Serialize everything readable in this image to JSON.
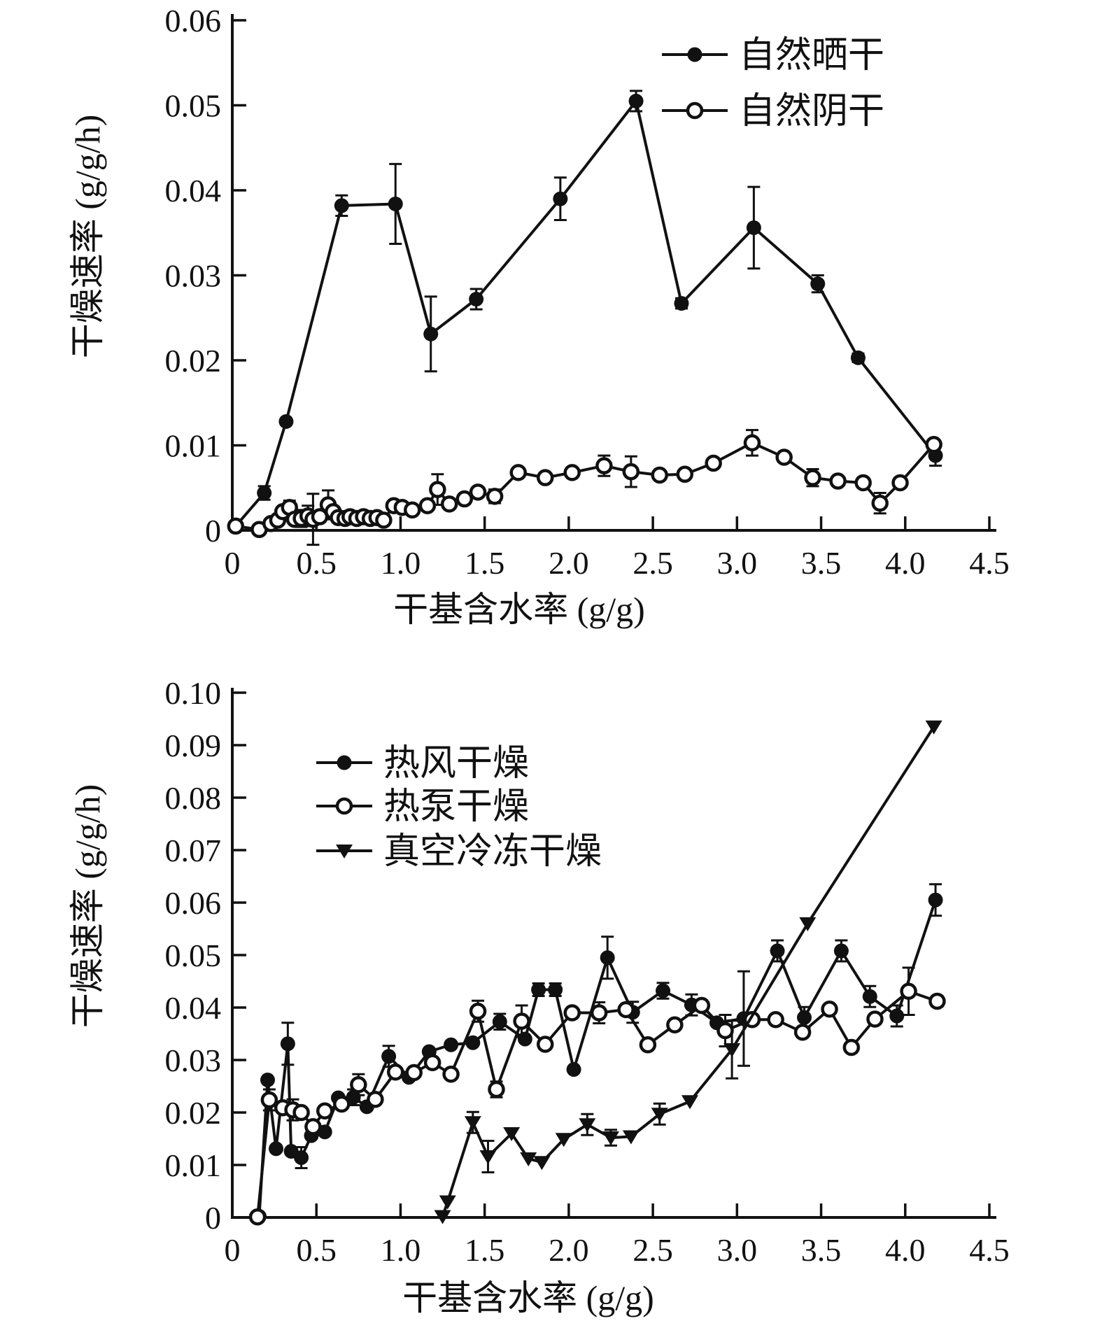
{
  "ink_color": "#111111",
  "charts": [
    {
      "name": "top-drying-rate-chart",
      "ylabel": "干燥速率 (g/g/h)",
      "xlabel": "干基含水率 (g/g)",
      "xlim": [
        0,
        4.5
      ],
      "ylim": [
        0,
        0.06
      ],
      "x_ticks": [
        0,
        0.5,
        1.0,
        1.5,
        2.0,
        2.5,
        3.0,
        3.5,
        4.0,
        4.5
      ],
      "x_tick_labels": [
        "0",
        "0.5",
        "1.0",
        "1.5",
        "2.0",
        "2.5",
        "3.0",
        "3.5",
        "4.0",
        "4.5"
      ],
      "y_ticks": [
        0,
        0.01,
        0.02,
        0.03,
        0.04,
        0.05,
        0.06
      ],
      "y_tick_labels": [
        "0",
        "0.01",
        "0.02",
        "0.03",
        "0.04",
        "0.05",
        "0.06"
      ],
      "legend": [
        {
          "label": "自然晒干",
          "marker": "filled-circle"
        },
        {
          "label": "自然阴干",
          "marker": "open-circle"
        }
      ],
      "chart_data": {
        "type": "line",
        "grid": false,
        "legend_position": "upper-right-inside",
        "series": [
          {
            "name": "自然晒干",
            "marker": "filled-circle",
            "points": [
              [
                0.02,
                0.0005,
                0
              ],
              [
                0.19,
                0.0044,
                0.0008
              ],
              [
                0.32,
                0.0128,
                0
              ],
              [
                0.65,
                0.0382,
                0.0012
              ],
              [
                0.97,
                0.0384,
                0.0047
              ],
              [
                1.18,
                0.0231,
                0.0044
              ],
              [
                1.45,
                0.0272,
                0.0012
              ],
              [
                1.95,
                0.039,
                0.0025
              ],
              [
                2.4,
                0.0505,
                0.0012
              ],
              [
                2.67,
                0.0267,
                0.0006
              ],
              [
                3.1,
                0.0356,
                0.0048
              ],
              [
                3.48,
                0.029,
                0.001
              ],
              [
                3.72,
                0.0203,
                0.0005
              ],
              [
                4.18,
                0.0088,
                0.0012
              ]
            ]
          },
          {
            "name": "自然阴干",
            "marker": "open-circle",
            "points": [
              [
                0.02,
                0.0005,
                0
              ],
              [
                0.16,
                0.0001,
                0
              ],
              [
                0.23,
                0.0008,
                0
              ],
              [
                0.27,
                0.0012,
                0
              ],
              [
                0.3,
                0.0022,
                0.0005
              ],
              [
                0.34,
                0.0027,
                0.0008
              ],
              [
                0.37,
                0.0013,
                0
              ],
              [
                0.41,
                0.0014,
                0.001
              ],
              [
                0.45,
                0.0017,
                0.0012
              ],
              [
                0.48,
                0.0013,
                0.003
              ],
              [
                0.52,
                0.0016,
                0
              ],
              [
                0.57,
                0.003,
                0.0017
              ],
              [
                0.6,
                0.0022,
                0
              ],
              [
                0.63,
                0.0015,
                0
              ],
              [
                0.67,
                0.0014,
                0
              ],
              [
                0.7,
                0.0016,
                0
              ],
              [
                0.74,
                0.0014,
                0
              ],
              [
                0.78,
                0.0016,
                0
              ],
              [
                0.82,
                0.0014,
                0
              ],
              [
                0.86,
                0.0015,
                0
              ],
              [
                0.9,
                0.0012,
                0
              ],
              [
                0.96,
                0.0029,
                0
              ],
              [
                1.01,
                0.0027,
                0
              ],
              [
                1.07,
                0.0024,
                0
              ],
              [
                1.16,
                0.0029,
                0
              ],
              [
                1.22,
                0.0048,
                0.0018
              ],
              [
                1.29,
                0.0031,
                0
              ],
              [
                1.38,
                0.0037,
                0
              ],
              [
                1.46,
                0.0045,
                0.0005
              ],
              [
                1.56,
                0.004,
                0.0008
              ],
              [
                1.7,
                0.0068,
                0
              ],
              [
                1.86,
                0.0062,
                0
              ],
              [
                2.02,
                0.0068,
                0
              ],
              [
                2.21,
                0.0076,
                0.0012
              ],
              [
                2.37,
                0.0069,
                0.0018
              ],
              [
                2.54,
                0.0065,
                0
              ],
              [
                2.69,
                0.0066,
                0
              ],
              [
                2.86,
                0.0079,
                0
              ],
              [
                3.09,
                0.0103,
                0.0015
              ],
              [
                3.28,
                0.0086,
                0
              ],
              [
                3.45,
                0.0062,
                0.001
              ],
              [
                3.6,
                0.0058,
                0
              ],
              [
                3.75,
                0.0056,
                0
              ],
              [
                3.85,
                0.0032,
                0.0012
              ],
              [
                3.97,
                0.0056,
                0
              ],
              [
                4.17,
                0.0101,
                0
              ]
            ]
          }
        ]
      }
    },
    {
      "name": "bottom-drying-rate-chart",
      "ylabel": "干燥速率 (g/g/h)",
      "xlabel": "干基含水率 (g/g)",
      "xlim": [
        0,
        4.5
      ],
      "ylim": [
        0,
        0.1
      ],
      "x_ticks": [
        0,
        0.5,
        1.0,
        1.5,
        2.0,
        2.5,
        3.0,
        3.5,
        4.0,
        4.5
      ],
      "x_tick_labels": [
        "0",
        "0.5",
        "1.0",
        "1.5",
        "2.0",
        "2.5",
        "3.0",
        "3.5",
        "4.0",
        "4.5"
      ],
      "y_ticks": [
        0,
        0.01,
        0.02,
        0.03,
        0.04,
        0.05,
        0.06,
        0.07,
        0.08,
        0.09,
        0.1
      ],
      "y_tick_labels": [
        "0",
        "0.01",
        "0.02",
        "0.03",
        "0.04",
        "0.05",
        "0.06",
        "0.07",
        "0.08",
        "0.09",
        "0.10"
      ],
      "legend": [
        {
          "label": "热风干燥",
          "marker": "filled-circle"
        },
        {
          "label": "热泵干燥",
          "marker": "open-circle"
        },
        {
          "label": "真空冷冻干燥",
          "marker": "filled-triangle-down"
        }
      ],
      "chart_data": {
        "type": "line",
        "grid": false,
        "legend_position": "upper-left-inside",
        "series": [
          {
            "name": "热风干燥",
            "marker": "filled-circle",
            "points": [
              [
                0.16,
                0.0002,
                0
              ],
              [
                0.21,
                0.0262,
                0
              ],
              [
                0.26,
                0.0131,
                0
              ],
              [
                0.33,
                0.0331,
                0.004
              ],
              [
                0.35,
                0.0126,
                0
              ],
              [
                0.41,
                0.0114,
                0.002
              ],
              [
                0.47,
                0.0156,
                0
              ],
              [
                0.55,
                0.0163,
                0
              ],
              [
                0.63,
                0.0228,
                0
              ],
              [
                0.72,
                0.0229,
                0.0015
              ],
              [
                0.8,
                0.0211,
                0
              ],
              [
                0.93,
                0.0307,
                0.002
              ],
              [
                1.05,
                0.0267,
                0
              ],
              [
                1.17,
                0.0316,
                0
              ],
              [
                1.3,
                0.0329,
                0
              ],
              [
                1.43,
                0.0333,
                0
              ],
              [
                1.59,
                0.0373,
                0.0015
              ],
              [
                1.74,
                0.034,
                0
              ],
              [
                1.82,
                0.0434,
                0.0012
              ],
              [
                1.92,
                0.0434,
                0.0012
              ],
              [
                2.03,
                0.0282,
                0
              ],
              [
                2.23,
                0.0495,
                0.004
              ],
              [
                2.38,
                0.0391,
                0.002
              ],
              [
                2.56,
                0.0432,
                0.0015
              ],
              [
                2.73,
                0.0405,
                0.002
              ],
              [
                2.88,
                0.0371,
                0
              ],
              [
                3.04,
                0.0379,
                0.009
              ],
              [
                3.24,
                0.0508,
                0.002
              ],
              [
                3.4,
                0.0381,
                0.002
              ],
              [
                3.62,
                0.0508,
                0.002
              ],
              [
                3.79,
                0.0421,
                0.002
              ],
              [
                3.95,
                0.0384,
                0.002
              ],
              [
                4.18,
                0.0605,
                0.003
              ]
            ]
          },
          {
            "name": "热泵干燥",
            "marker": "open-circle",
            "points": [
              [
                0.15,
                0.0001,
                0
              ],
              [
                0.22,
                0.0224,
                0.002
              ],
              [
                0.3,
                0.0209,
                0
              ],
              [
                0.36,
                0.0205,
                0.002
              ],
              [
                0.41,
                0.02,
                0
              ],
              [
                0.48,
                0.0173,
                0
              ],
              [
                0.55,
                0.0203,
                0
              ],
              [
                0.65,
                0.0216,
                0
              ],
              [
                0.75,
                0.0253,
                0.002
              ],
              [
                0.85,
                0.0225,
                0
              ],
              [
                0.97,
                0.0277,
                0
              ],
              [
                1.08,
                0.0276,
                0
              ],
              [
                1.19,
                0.0295,
                0
              ],
              [
                1.3,
                0.0273,
                0
              ],
              [
                1.46,
                0.0393,
                0.002
              ],
              [
                1.57,
                0.0244,
                0.0015
              ],
              [
                1.72,
                0.0374,
                0.003
              ],
              [
                1.86,
                0.033,
                0
              ],
              [
                2.02,
                0.039,
                0
              ],
              [
                2.18,
                0.039,
                0.002
              ],
              [
                2.34,
                0.0396,
                0
              ],
              [
                2.47,
                0.0329,
                0
              ],
              [
                2.63,
                0.0367,
                0
              ],
              [
                2.79,
                0.0404,
                0
              ],
              [
                2.93,
                0.0356,
                0.003
              ],
              [
                3.09,
                0.0377,
                0
              ],
              [
                3.23,
                0.0377,
                0
              ],
              [
                3.39,
                0.0353,
                0
              ],
              [
                3.55,
                0.0397,
                0
              ],
              [
                3.68,
                0.0324,
                0
              ],
              [
                3.82,
                0.0378,
                0
              ],
              [
                4.02,
                0.0431,
                0.0045
              ],
              [
                4.19,
                0.0412,
                0.001
              ]
            ]
          },
          {
            "name": "真空冷冻干燥",
            "marker": "filled-triangle-down",
            "points": [
              [
                1.25,
                0.0002,
                0
              ],
              [
                1.28,
                0.003,
                0
              ],
              [
                1.43,
                0.0181,
                0.002
              ],
              [
                1.52,
                0.0116,
                0.003
              ],
              [
                1.66,
                0.016,
                0
              ],
              [
                1.76,
                0.0112,
                0
              ],
              [
                1.84,
                0.0105,
                0
              ],
              [
                1.97,
                0.0149,
                0
              ],
              [
                2.11,
                0.0177,
                0.002
              ],
              [
                2.25,
                0.0152,
                0.0015
              ],
              [
                2.37,
                0.0154,
                0
              ],
              [
                2.54,
                0.0197,
                0.002
              ],
              [
                2.72,
                0.0221,
                0
              ],
              [
                2.97,
                0.032,
                0.0055
              ],
              [
                3.42,
                0.056,
                0
              ],
              [
                4.17,
                0.0935,
                0
              ]
            ]
          }
        ]
      }
    }
  ]
}
